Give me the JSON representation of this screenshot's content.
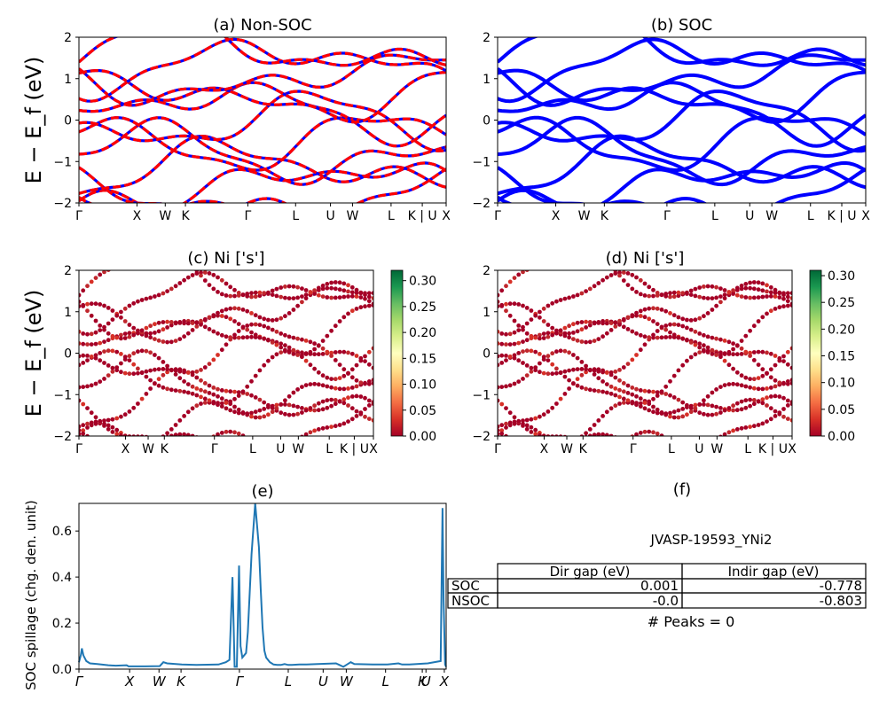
{
  "chart_data": [
    {
      "panel": "a",
      "type": "line",
      "title": "(a) Non-SOC",
      "ylabel": "E − E_f (eV)",
      "ylim": [
        -2,
        2
      ],
      "yticks": [
        "2",
        "1",
        "0",
        "−1",
        "−2"
      ],
      "xticks": [
        "Γ",
        "X",
        "W",
        "K",
        "Γ",
        "L",
        "U",
        "W",
        "L",
        "K | U",
        "X"
      ],
      "series": [
        {
          "style": "spin up (blue) / spin down (red dashed)",
          "color": "#ff0000"
        }
      ]
    },
    {
      "panel": "b",
      "type": "line",
      "title": "(b) SOC",
      "ylim": [
        -2,
        2
      ],
      "yticks": [
        "2",
        "1",
        "0",
        "−1",
        "−2"
      ],
      "xticks": [
        "Γ",
        "X",
        "W",
        "K",
        "Γ",
        "L",
        "U",
        "W",
        "L",
        "K | U",
        "X"
      ],
      "series": [
        {
          "color": "#0000ff"
        }
      ]
    },
    {
      "panel": "c",
      "type": "scatter",
      "title": "(c)  Ni ['s']",
      "ylabel": "E − E_f (eV)",
      "ylim": [
        -2,
        2
      ],
      "yticks": [
        "2",
        "1",
        "0",
        "−1",
        "−2"
      ],
      "xticks": [
        "Γ",
        "X",
        "W",
        "K",
        "Γ",
        "L",
        "U",
        "W",
        "L",
        "K | U",
        "X"
      ],
      "colorbar": {
        "cmap": "RdYlGn",
        "ticks": [
          "0.30",
          "0.25",
          "0.20",
          "0.15",
          "0.10",
          "0.05",
          "0.00"
        ],
        "max": 0.32
      }
    },
    {
      "panel": "d",
      "type": "scatter",
      "title": "(d) Ni ['s']",
      "ylim": [
        -2,
        2
      ],
      "yticks": [
        "2",
        "1",
        "0",
        "−1",
        "−2"
      ],
      "xticks": [
        "Γ",
        "X",
        "W",
        "K",
        "Γ",
        "L",
        "U",
        "W",
        "L",
        "K | U",
        "X"
      ],
      "colorbar": {
        "cmap": "RdYlGn",
        "ticks": [
          "0.30",
          "0.25",
          "0.20",
          "0.15",
          "0.10",
          "0.05",
          "0.00"
        ],
        "max": 0.31
      }
    },
    {
      "panel": "e",
      "type": "line",
      "title": "(e)",
      "ylabel": "SOC spillage (chg. den. unit)",
      "ylim": [
        0,
        0.72
      ],
      "yticks": [
        "0.6",
        "0.4",
        "0.2",
        "0.0"
      ],
      "xticks": [
        "Γ",
        "X",
        "W",
        "K",
        "Γ",
        "L",
        "U",
        "W",
        "L",
        "K",
        "U",
        "X"
      ],
      "series": [
        {
          "color": "#1f77b4",
          "x": [
            0,
            0.005,
            0.008,
            0.012,
            0.02,
            0.03,
            0.05,
            0.08,
            0.1,
            0.13,
            0.135,
            0.14,
            0.18,
            0.22,
            0.23,
            0.24,
            0.28,
            0.32,
            0.38,
            0.4,
            0.41,
            0.418,
            0.424,
            0.43,
            0.436,
            0.44,
            0.445,
            0.455,
            0.46,
            0.47,
            0.48,
            0.49,
            0.495,
            0.5,
            0.505,
            0.51,
            0.52,
            0.525,
            0.53,
            0.54,
            0.55,
            0.56,
            0.57,
            0.58,
            0.6,
            0.61,
            0.62,
            0.65,
            0.7,
            0.72,
            0.73,
            0.74,
            0.75,
            0.8,
            0.84,
            0.87,
            0.88,
            0.9,
            0.95,
            0.985,
            0.99,
            0.993,
            0.997,
            1
          ],
          "y": [
            0.03,
            0.06,
            0.09,
            0.06,
            0.035,
            0.025,
            0.022,
            0.017,
            0.015,
            0.017,
            0.012,
            0.012,
            0.012,
            0.013,
            0.03,
            0.025,
            0.02,
            0.018,
            0.02,
            0.03,
            0.04,
            0.4,
            0.01,
            0.01,
            0.45,
            0.1,
            0.05,
            0.07,
            0.16,
            0.5,
            0.72,
            0.53,
            0.35,
            0.18,
            0.08,
            0.05,
            0.03,
            0.025,
            0.02,
            0.018,
            0.018,
            0.022,
            0.018,
            0.018,
            0.02,
            0.02,
            0.02,
            0.022,
            0.025,
            0.01,
            0.02,
            0.03,
            0.022,
            0.02,
            0.02,
            0.025,
            0.02,
            0.02,
            0.025,
            0.035,
            0.7,
            0.3,
            0.02,
            0.01
          ]
        }
      ]
    }
  ],
  "panel_f": {
    "title": "(f)",
    "material": "JVASP-19593_YNi2",
    "col_headers": [
      "Dir gap (eV)",
      "Indir gap (eV)"
    ],
    "rows": [
      {
        "label": "SOC",
        "dir": "0.001",
        "indir": "-0.778"
      },
      {
        "label": "NSOC",
        "dir": "-0.0",
        "indir": "-0.803"
      }
    ],
    "peaks": "# Peaks = 0"
  }
}
